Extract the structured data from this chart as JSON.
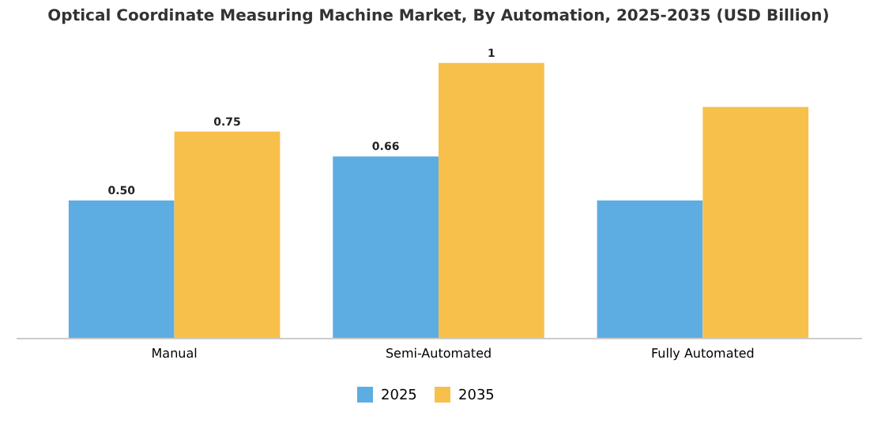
{
  "chart_data": {
    "type": "bar",
    "title": "Optical Coordinate Measuring Machine Market, By Automation, 2025-2035 (USD Billion)",
    "categories": [
      "Manual",
      "Semi-Automated",
      "Fully Automated"
    ],
    "series": [
      {
        "name": "2025",
        "color": "#5dade2",
        "values": [
          0.5,
          0.66,
          0.5
        ],
        "value_labels": [
          "0.50",
          "0.66",
          null
        ]
      },
      {
        "name": "2035",
        "color": "#f7c04a",
        "values": [
          0.75,
          1,
          0.84
        ],
        "value_labels": [
          "0.75",
          "1",
          null
        ]
      }
    ],
    "legend": "bottom",
    "grid": false
  }
}
